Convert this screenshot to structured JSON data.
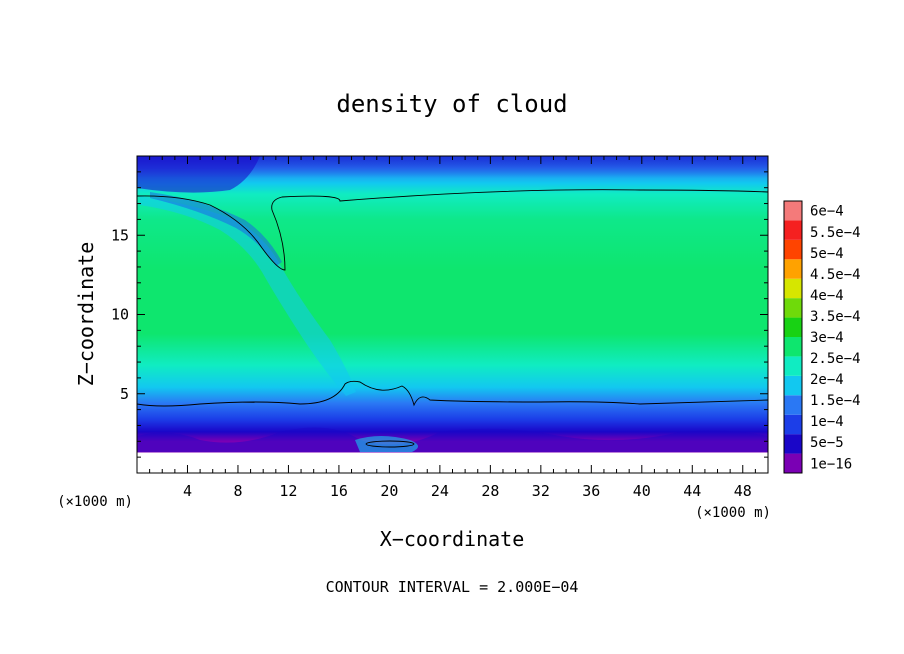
{
  "chart_data": {
    "type": "heatmap",
    "title": "density of cloud",
    "xlabel": "X−coordinate",
    "ylabel": "Z−coordinate",
    "x_unit": "(×1000 m)",
    "y_unit": "(×1000 m)",
    "xlim": [
      0,
      50
    ],
    "ylim": [
      0,
      20
    ],
    "x_ticks": [
      "4",
      "8",
      "12",
      "16",
      "20",
      "24",
      "28",
      "32",
      "36",
      "40",
      "44",
      "48"
    ],
    "y_ticks": [
      "5",
      "10",
      "15"
    ],
    "footer": "CONTOUR INTERVAL = 2.000E−04",
    "colorbar": {
      "levels": [
        "1e−16",
        "5e−5",
        "1e−4",
        "1.5e−4",
        "2e−4",
        "2.5e−4",
        "3e−4",
        "3.5e−4",
        "4e−4",
        "4.5e−4",
        "5e−4",
        "5.5e−4",
        "6e−4"
      ],
      "colors": [
        "#7a00b4",
        "#1a06c8",
        "#1c3ee8",
        "#2a78f4",
        "#12c8f0",
        "#10ecc2",
        "#0ee66e",
        "#18d214",
        "#6fda0a",
        "#d6e600",
        "#ffa200",
        "#ff4400",
        "#f52020",
        "#f47a7a"
      ]
    },
    "contour_level": 0.0002,
    "grid": false
  }
}
